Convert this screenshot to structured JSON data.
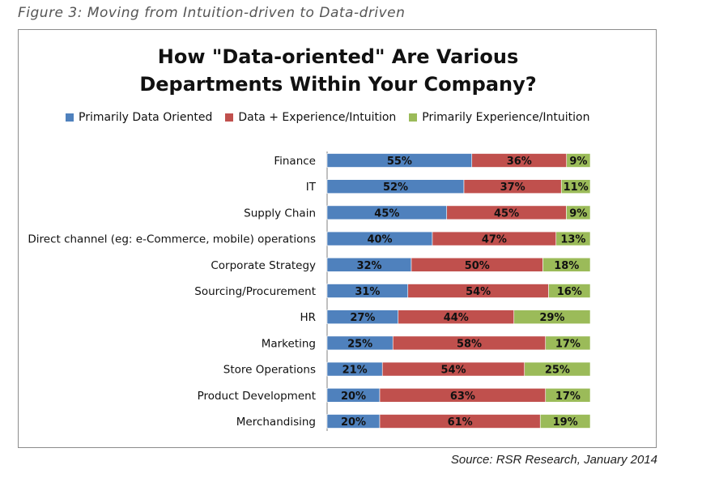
{
  "caption": "Figure 3: Moving from Intuition-driven to Data-driven",
  "source": "Source: RSR Research, January 2014",
  "colors": {
    "data": "#4f81bd",
    "mixed": "#c0504d",
    "intuition": "#9bbb59"
  },
  "chart_data": {
    "type": "bar",
    "orientation": "horizontal",
    "stacked": true,
    "title_line1": "How \"Data-oriented\" Are Various",
    "title_line2": "Departments Within Your Company?",
    "legend_position": "top",
    "categories": [
      "Finance",
      "IT",
      "Supply Chain",
      "Direct channel (eg: e-Commerce, mobile) operations",
      "Corporate Strategy",
      "Sourcing/Procurement",
      "HR",
      "Marketing",
      "Store Operations",
      "Product Development",
      "Merchandising"
    ],
    "series": [
      {
        "name": "Primarily Data Oriented",
        "values": [
          55,
          52,
          45,
          40,
          32,
          31,
          27,
          25,
          21,
          20,
          20
        ]
      },
      {
        "name": "Data + Experience/Intuition",
        "values": [
          36,
          37,
          45,
          47,
          50,
          54,
          44,
          58,
          54,
          63,
          61
        ]
      },
      {
        "name": "Primarily Experience/Intuition",
        "values": [
          9,
          11,
          9,
          13,
          18,
          16,
          29,
          17,
          25,
          17,
          19
        ]
      }
    ],
    "value_suffix": "%"
  }
}
